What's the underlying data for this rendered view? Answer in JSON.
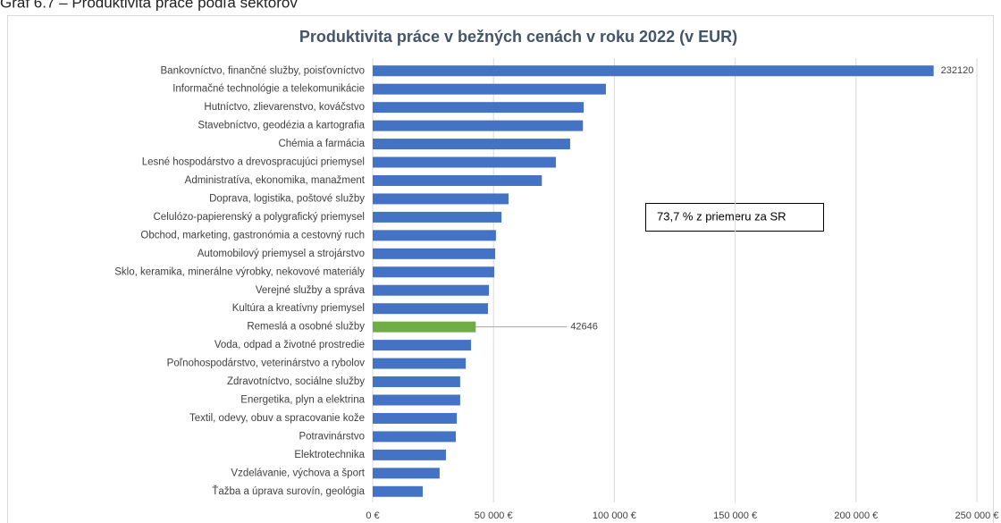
{
  "caption": "Graf 6.7 – Produktivita práce podľa sektorov",
  "chart_data": {
    "type": "bar",
    "orientation": "horizontal",
    "title": "Produktivita práce v bežných cenách v roku 2022 (v EUR)",
    "annotation": "73,7 % z priemeru za SR",
    "categories": [
      "Bankovníctvo, finančné služby, poisťovníctvo",
      "Informačné technológie a telekomunikácie",
      "Hutníctvo, zlievarenstvo, kováčstvo",
      "Stavebníctvo, geodézia a kartografia",
      "Chémia a farmácia",
      "Lesné hospodárstvo a drevospracujúci priemysel",
      "Administratíva, ekonomika, manažment",
      "Doprava, logistika, poštové služby",
      "Celulózo-papierenský a polygrafický priemysel",
      "Obchod, marketing, gastronómia a cestovný ruch",
      "Automobilový priemysel a strojárstvo",
      "Sklo, keramika, minerálne výrobky, nekovové materiály",
      "Verejné služby a správa",
      "Kultúra a kreatívny priemysel",
      "Remeslá a osobné služby",
      "Voda, odpad a životné prostredie",
      "Poľnohospodárstvo, veterinárstvo a rybolov",
      "Zdravotníctvo, sociálne služby",
      "Energetika, plyn a elektrina",
      "Textil, odevy, obuv a spracovanie kože",
      "Potravinárstvo",
      "Elektrotechnika",
      "Vzdelávanie, výchova a šport",
      "Ťažba a úprava surovín, geológia"
    ],
    "values": [
      232120,
      96500,
      87300,
      87000,
      81700,
      75800,
      70000,
      56200,
      53300,
      51000,
      50700,
      50300,
      48100,
      47700,
      42646,
      40700,
      38500,
      36200,
      36200,
      34800,
      34400,
      30300,
      27700,
      20700
    ],
    "colors": [
      "#4472c4",
      "#4472c4",
      "#4472c4",
      "#4472c4",
      "#4472c4",
      "#4472c4",
      "#4472c4",
      "#4472c4",
      "#4472c4",
      "#4472c4",
      "#4472c4",
      "#4472c4",
      "#4472c4",
      "#4472c4",
      "#70ad47",
      "#4472c4",
      "#4472c4",
      "#4472c4",
      "#4472c4",
      "#4472c4",
      "#4472c4",
      "#4472c4",
      "#4472c4",
      "#4472c4"
    ],
    "data_labels": [
      true,
      false,
      false,
      false,
      false,
      false,
      false,
      false,
      false,
      false,
      false,
      false,
      false,
      false,
      true,
      false,
      false,
      false,
      false,
      false,
      false,
      false,
      false,
      false
    ],
    "xlim": [
      0,
      250000
    ],
    "xticks": [
      {
        "value": 0,
        "label": "0 €"
      },
      {
        "value": 50000,
        "label": "50 000 €"
      },
      {
        "value": 100000,
        "label": "100 000 €"
      },
      {
        "value": 150000,
        "label": "150 000 €"
      },
      {
        "value": 200000,
        "label": "200 000 €"
      },
      {
        "value": 250000,
        "label": "250 000 €"
      }
    ],
    "grid": true
  }
}
